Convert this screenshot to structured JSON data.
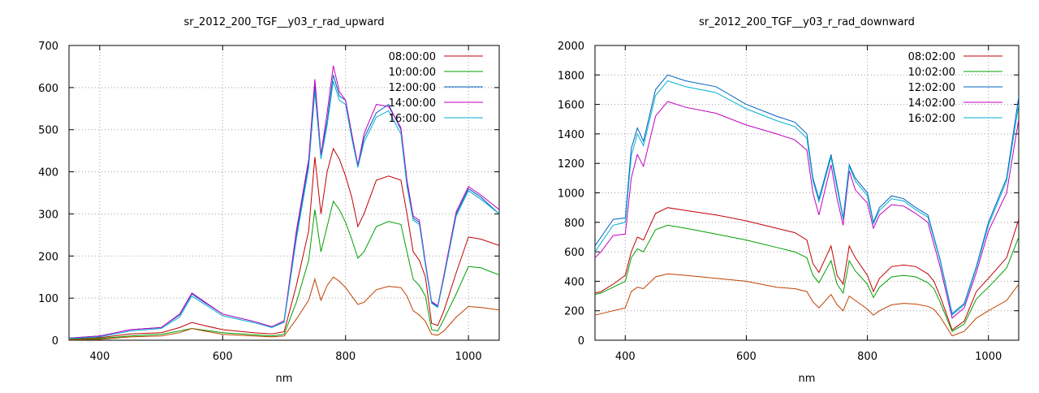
{
  "chart_data": [
    {
      "type": "line",
      "title": "sr_2012_200_TGF__y03_r_rad_upward",
      "xlabel": "nm",
      "ylabel": "",
      "xlim": [
        350,
        1050
      ],
      "ylim": [
        0,
        700
      ],
      "xticks": [
        400,
        600,
        800,
        1000
      ],
      "yticks": [
        0,
        100,
        200,
        300,
        400,
        500,
        600,
        700
      ],
      "grid": true,
      "legend_position": "top-right",
      "series": [
        {
          "name": "08:00:00",
          "color": "#c00000",
          "x": [
            350,
            400,
            450,
            500,
            530,
            550,
            570,
            600,
            650,
            680,
            700,
            720,
            740,
            750,
            760,
            770,
            780,
            790,
            800,
            810,
            820,
            830,
            850,
            870,
            890,
            900,
            910,
            920,
            930,
            940,
            950,
            960,
            980,
            1000,
            1020,
            1050
          ],
          "y": [
            3,
            6,
            15,
            18,
            30,
            42,
            35,
            25,
            18,
            15,
            20,
            130,
            260,
            435,
            300,
            400,
            455,
            430,
            390,
            340,
            270,
            300,
            380,
            390,
            380,
            300,
            210,
            190,
            150,
            40,
            35,
            70,
            160,
            245,
            240,
            225
          ]
        },
        {
          "name": "10:00:00",
          "color": "#00a000",
          "x": [
            350,
            400,
            450,
            500,
            530,
            550,
            570,
            600,
            650,
            680,
            700,
            720,
            740,
            750,
            760,
            770,
            780,
            790,
            800,
            810,
            820,
            830,
            850,
            870,
            890,
            900,
            910,
            920,
            930,
            940,
            950,
            960,
            980,
            1000,
            1020,
            1050
          ],
          "y": [
            2,
            4,
            10,
            14,
            22,
            28,
            24,
            18,
            13,
            10,
            14,
            90,
            190,
            310,
            210,
            270,
            330,
            310,
            280,
            240,
            195,
            210,
            270,
            282,
            275,
            210,
            145,
            130,
            105,
            25,
            22,
            50,
            110,
            175,
            172,
            155
          ]
        },
        {
          "name": "12:00:00",
          "color": "#0060c0",
          "x": [
            350,
            400,
            450,
            500,
            530,
            550,
            570,
            600,
            650,
            680,
            700,
            720,
            740,
            750,
            760,
            770,
            780,
            790,
            800,
            810,
            820,
            830,
            850,
            870,
            890,
            900,
            910,
            920,
            930,
            940,
            950,
            960,
            980,
            1000,
            1020,
            1050
          ],
          "y": [
            5,
            10,
            25,
            30,
            60,
            110,
            90,
            62,
            45,
            32,
            45,
            250,
            420,
            605,
            440,
            520,
            630,
            580,
            570,
            490,
            415,
            480,
            540,
            560,
            500,
            370,
            290,
            280,
            180,
            90,
            80,
            150,
            300,
            360,
            340,
            300
          ]
        },
        {
          "name": "14:00:00",
          "color": "#c000c0",
          "x": [
            350,
            400,
            450,
            500,
            530,
            550,
            570,
            600,
            650,
            680,
            700,
            720,
            740,
            750,
            760,
            770,
            780,
            790,
            800,
            810,
            820,
            830,
            850,
            870,
            890,
            900,
            910,
            920,
            930,
            940,
            950,
            960,
            980,
            1000,
            1020,
            1050
          ],
          "y": [
            5,
            10,
            25,
            30,
            62,
            112,
            92,
            62,
            45,
            32,
            46,
            260,
            430,
            620,
            440,
            540,
            652,
            590,
            570,
            490,
            415,
            490,
            560,
            555,
            505,
            380,
            295,
            285,
            185,
            92,
            82,
            155,
            305,
            365,
            345,
            310
          ]
        },
        {
          "name": "16:00:00",
          "color": "#00b0d0",
          "x": [
            350,
            400,
            450,
            500,
            530,
            550,
            570,
            600,
            650,
            680,
            700,
            720,
            740,
            750,
            760,
            770,
            780,
            790,
            800,
            810,
            820,
            830,
            850,
            870,
            890,
            900,
            910,
            920,
            930,
            940,
            950,
            960,
            980,
            1000,
            1020,
            1050
          ],
          "y": [
            4,
            8,
            22,
            28,
            55,
            105,
            86,
            58,
            42,
            30,
            42,
            240,
            410,
            590,
            430,
            510,
            615,
            570,
            560,
            480,
            410,
            470,
            530,
            545,
            490,
            365,
            285,
            275,
            178,
            88,
            78,
            148,
            295,
            355,
            335,
            300
          ]
        },
        {
          "name": "",
          "color": "#c04000",
          "x": [
            350,
            400,
            450,
            500,
            530,
            550,
            570,
            600,
            650,
            680,
            700,
            720,
            740,
            750,
            760,
            770,
            780,
            790,
            800,
            810,
            820,
            830,
            850,
            870,
            890,
            900,
            910,
            920,
            930,
            940,
            950,
            960,
            980,
            1000,
            1020,
            1050
          ],
          "y": [
            1,
            2,
            8,
            10,
            18,
            28,
            22,
            14,
            10,
            8,
            10,
            50,
            95,
            145,
            95,
            130,
            150,
            140,
            125,
            105,
            85,
            90,
            120,
            128,
            125,
            105,
            70,
            60,
            45,
            14,
            12,
            22,
            55,
            80,
            78,
            72
          ]
        }
      ]
    },
    {
      "type": "line",
      "title": "sr_2012_200_TGF__y03_r_rad_downward",
      "xlabel": "nm",
      "ylabel": "",
      "xlim": [
        350,
        1050
      ],
      "ylim": [
        0,
        2000
      ],
      "xticks": [
        400,
        600,
        800,
        1000
      ],
      "yticks": [
        0,
        200,
        400,
        600,
        800,
        1000,
        1200,
        1400,
        1600,
        1800,
        2000
      ],
      "grid": true,
      "legend_position": "top-right",
      "series": [
        {
          "name": "08:02:00",
          "color": "#c00000",
          "x": [
            350,
            360,
            380,
            400,
            410,
            420,
            430,
            450,
            470,
            500,
            550,
            600,
            650,
            680,
            700,
            710,
            720,
            740,
            750,
            760,
            770,
            780,
            800,
            810,
            820,
            840,
            860,
            880,
            900,
            910,
            920,
            940,
            960,
            980,
            1000,
            1030,
            1050
          ],
          "y": [
            320,
            330,
            380,
            440,
            600,
            700,
            680,
            860,
            900,
            880,
            850,
            810,
            760,
            730,
            680,
            520,
            460,
            640,
            440,
            380,
            640,
            560,
            440,
            330,
            420,
            500,
            510,
            500,
            450,
            400,
            300,
            70,
            130,
            330,
            420,
            560,
            820
          ]
        },
        {
          "name": "10:02:00",
          "color": "#00a000",
          "x": [
            350,
            360,
            380,
            400,
            410,
            420,
            430,
            450,
            470,
            500,
            550,
            600,
            650,
            680,
            700,
            710,
            720,
            740,
            750,
            760,
            770,
            780,
            800,
            810,
            820,
            840,
            860,
            880,
            900,
            910,
            920,
            940,
            960,
            980,
            1000,
            1030,
            1050
          ],
          "y": [
            310,
            320,
            360,
            400,
            560,
            620,
            600,
            750,
            780,
            760,
            720,
            680,
            630,
            600,
            560,
            440,
            390,
            540,
            380,
            320,
            540,
            470,
            380,
            290,
            360,
            430,
            440,
            430,
            390,
            350,
            260,
            60,
            110,
            280,
            360,
            490,
            700
          ]
        },
        {
          "name": "12:02:00",
          "color": "#0060c0",
          "x": [
            350,
            360,
            380,
            400,
            410,
            420,
            430,
            450,
            470,
            500,
            550,
            600,
            650,
            680,
            700,
            710,
            720,
            740,
            750,
            760,
            770,
            780,
            800,
            810,
            820,
            840,
            860,
            880,
            900,
            910,
            920,
            940,
            960,
            980,
            1000,
            1030,
            1050
          ],
          "y": [
            640,
            700,
            820,
            830,
            1300,
            1440,
            1350,
            1700,
            1800,
            1760,
            1720,
            1600,
            1520,
            1480,
            1400,
            1100,
            960,
            1260,
            1050,
            830,
            1190,
            1100,
            1000,
            800,
            900,
            980,
            960,
            900,
            850,
            700,
            550,
            180,
            250,
            500,
            800,
            1100,
            1650
          ]
        },
        {
          "name": "14:02:00",
          "color": "#c000c0",
          "x": [
            350,
            360,
            380,
            400,
            410,
            420,
            430,
            450,
            470,
            500,
            550,
            600,
            650,
            680,
            700,
            710,
            720,
            740,
            750,
            760,
            770,
            780,
            800,
            810,
            820,
            840,
            860,
            880,
            900,
            910,
            920,
            940,
            960,
            980,
            1000,
            1030,
            1050
          ],
          "y": [
            560,
            600,
            710,
            720,
            1100,
            1260,
            1180,
            1520,
            1620,
            1580,
            1540,
            1460,
            1400,
            1360,
            1290,
            1000,
            850,
            1190,
            960,
            780,
            1150,
            1020,
            930,
            760,
            850,
            920,
            910,
            860,
            800,
            650,
            500,
            150,
            220,
            460,
            740,
            1000,
            1500
          ]
        },
        {
          "name": "16:02:00",
          "color": "#00b0d0",
          "x": [
            350,
            360,
            380,
            400,
            410,
            420,
            430,
            450,
            470,
            500,
            550,
            600,
            650,
            680,
            700,
            710,
            720,
            740,
            750,
            760,
            770,
            780,
            800,
            810,
            820,
            840,
            860,
            880,
            900,
            910,
            920,
            940,
            960,
            980,
            1000,
            1030,
            1050
          ],
          "y": [
            600,
            660,
            780,
            800,
            1250,
            1400,
            1320,
            1660,
            1760,
            1720,
            1680,
            1570,
            1490,
            1450,
            1370,
            1080,
            940,
            1240,
            1030,
            820,
            1180,
            1080,
            980,
            790,
            880,
            960,
            945,
            885,
            835,
            690,
            540,
            170,
            240,
            490,
            780,
            1080,
            1600
          ]
        },
        {
          "name": "",
          "color": "#c04000",
          "x": [
            350,
            360,
            380,
            400,
            410,
            420,
            430,
            450,
            470,
            500,
            550,
            600,
            650,
            680,
            700,
            710,
            720,
            740,
            750,
            760,
            770,
            780,
            800,
            810,
            820,
            840,
            860,
            880,
            900,
            910,
            920,
            940,
            960,
            980,
            1000,
            1030,
            1050
          ],
          "y": [
            170,
            180,
            200,
            220,
            330,
            360,
            350,
            430,
            450,
            440,
            420,
            400,
            360,
            350,
            330,
            260,
            220,
            310,
            240,
            200,
            300,
            270,
            210,
            170,
            200,
            240,
            250,
            245,
            230,
            210,
            160,
            30,
            60,
            150,
            200,
            270,
            380
          ]
        }
      ]
    }
  ]
}
